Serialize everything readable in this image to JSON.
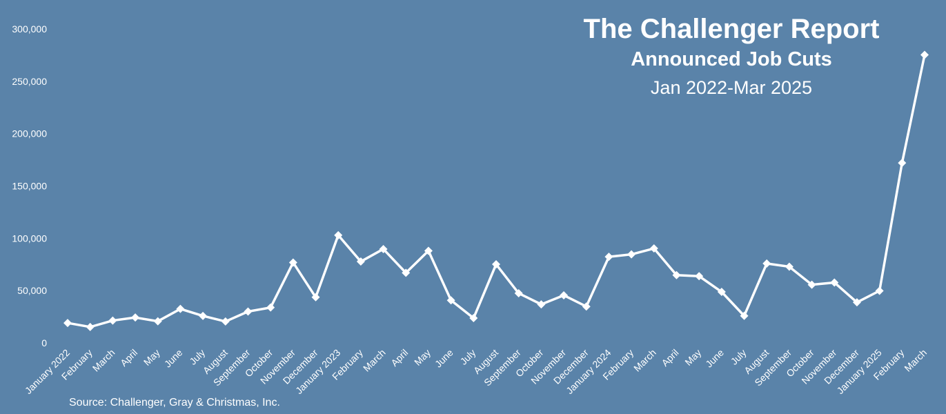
{
  "chart_data": {
    "type": "line",
    "title": "The Challenger Report",
    "subtitle": "Announced Job Cuts",
    "date_range": "Jan 2022-Mar 2025",
    "source": "Source: Challenger, Gray & Christmas, Inc.",
    "xlabel": "",
    "ylabel": "",
    "ylim": [
      0,
      300000
    ],
    "yticks": [
      "0",
      "50,000",
      "100,000",
      "150,000",
      "200,000",
      "250,000",
      "300,000"
    ],
    "grid": false,
    "categories": [
      "January 2022",
      "February",
      "March",
      "April",
      "May",
      "June",
      "July",
      "August",
      "September",
      "October",
      "November",
      "December",
      "January 2023",
      "February",
      "March",
      "April",
      "May",
      "June",
      "July",
      "August",
      "September",
      "October",
      "November",
      "December",
      "January 2024",
      "February",
      "March",
      "April",
      "May",
      "June",
      "July",
      "August",
      "September",
      "October",
      "November",
      "December",
      "January 2025",
      "February",
      "March"
    ],
    "values": [
      19064,
      15245,
      21387,
      24286,
      20712,
      32517,
      25810,
      20485,
      29989,
      33843,
      76835,
      43651,
      102943,
      77770,
      89703,
      66995,
      88000,
      40709,
      23697,
      75151,
      47457,
      36836,
      45510,
      34817,
      82307,
      84638,
      90309,
      64789,
      63816,
      48786,
      25885,
      75891,
      72821,
      55597,
      57727,
      38792,
      49795,
      172017,
      275240
    ],
    "colors": {
      "background": "#5a83a9",
      "line": "#ffffff"
    }
  }
}
